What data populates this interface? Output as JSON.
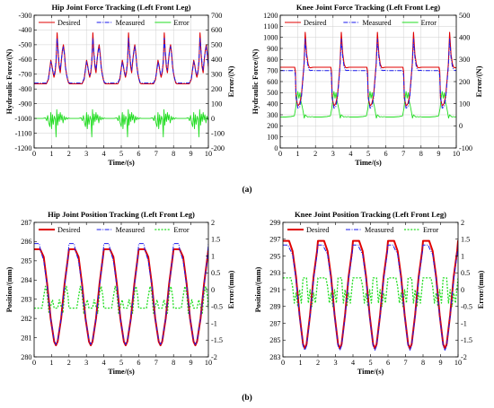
{
  "figure": {
    "subfigure_a_label": "(a)",
    "subfigure_b_label": "(b)"
  },
  "colors": {
    "desired": "#e00000",
    "measured": "#1a1aee",
    "error": "#22dd22"
  },
  "chart_data": [
    {
      "type": "line",
      "title": "Hip Joint Force Tracking (Left Front Leg)",
      "xlabel": "Time/(s)",
      "ylabel": "Hydraulic Force/(N)",
      "y2label": "Error/(N)",
      "xlim": [
        0,
        10
      ],
      "ylim": [
        -1200,
        -300
      ],
      "y2lim": [
        -200,
        700
      ],
      "xticks": [
        "0",
        "1",
        "2",
        "3",
        "4",
        "5",
        "6",
        "7",
        "8",
        "9",
        "10"
      ],
      "yticks": [
        "-300",
        "-400",
        "-500",
        "-600",
        "-700",
        "-800",
        "-900",
        "-1000",
        "-1100",
        "-1200"
      ],
      "y2ticks": [
        "700",
        "600",
        "500",
        "400",
        "300",
        "200",
        "100",
        "0",
        "-100",
        "-200"
      ],
      "grid": true,
      "legend": "top",
      "period": 2.05,
      "series": [
        {
          "name": "Desired",
          "axis": "left",
          "style": "solid",
          "width": 1.1,
          "x": [
            0,
            0.7,
            0.82,
            0.9,
            0.96,
            1.02,
            1.08,
            1.14,
            1.2,
            1.26,
            1.32,
            1.38,
            1.44,
            1.5,
            1.56,
            1.62,
            1.68,
            1.74,
            1.8,
            1.86,
            1.92,
            1.98,
            2.05
          ],
          "y": [
            -765,
            -765,
            -735,
            -660,
            -605,
            -640,
            -690,
            -720,
            -690,
            -620,
            -420,
            -560,
            -650,
            -690,
            -610,
            -540,
            -500,
            -560,
            -650,
            -700,
            -735,
            -760,
            -765
          ]
        },
        {
          "name": "Measured",
          "axis": "left",
          "style": "dashdot",
          "width": 1.0,
          "x": [
            0,
            0.7,
            0.82,
            0.9,
            0.96,
            1.02,
            1.08,
            1.14,
            1.2,
            1.26,
            1.32,
            1.38,
            1.44,
            1.5,
            1.56,
            1.62,
            1.68,
            1.74,
            1.8,
            1.86,
            1.92,
            1.98,
            2.05
          ],
          "y": [
            -760,
            -760,
            -728,
            -668,
            -615,
            -648,
            -682,
            -708,
            -675,
            -608,
            -455,
            -548,
            -632,
            -672,
            -602,
            -548,
            -512,
            -572,
            -655,
            -702,
            -732,
            -755,
            -760
          ]
        },
        {
          "name": "Error",
          "axis": "right",
          "style": "solid",
          "width": 0.9,
          "x": [
            0,
            0.5,
            0.65,
            0.72,
            0.78,
            0.84,
            0.9,
            0.96,
            1.0,
            1.05,
            1.1,
            1.16,
            1.22,
            1.26,
            1.3,
            1.35,
            1.4,
            1.45,
            1.5,
            1.55,
            1.6,
            1.66,
            1.72,
            1.78,
            1.84,
            1.9,
            1.96,
            2.05
          ],
          "y": [
            0,
            0,
            5,
            -15,
            20,
            -30,
            -55,
            40,
            -70,
            25,
            -40,
            15,
            -10,
            -125,
            60,
            -45,
            30,
            -20,
            40,
            -10,
            25,
            -30,
            15,
            -10,
            8,
            -5,
            3,
            0
          ]
        }
      ]
    },
    {
      "type": "line",
      "title": "Knee Joint Force Tracking (Left Front Leg)",
      "xlabel": "Time/(s)",
      "ylabel": "Hydraulic Force/(N)",
      "y2label": "Error/(N)",
      "xlim": [
        0,
        10
      ],
      "ylim": [
        0,
        1200
      ],
      "y2lim": [
        -100,
        500
      ],
      "xticks": [
        "0",
        "1",
        "2",
        "3",
        "4",
        "5",
        "6",
        "7",
        "8",
        "9",
        "10"
      ],
      "yticks": [
        "1200",
        "1100",
        "1000",
        "900",
        "800",
        "700",
        "600",
        "500",
        "400",
        "300",
        "200",
        "100",
        "0"
      ],
      "y2ticks": [
        "500",
        "400",
        "300",
        "200",
        "100",
        "0",
        "-100"
      ],
      "grid": true,
      "legend": "top",
      "period": 2.05,
      "series": [
        {
          "name": "Desired",
          "axis": "left",
          "style": "solid",
          "width": 1.1,
          "x": [
            0,
            0.82,
            0.86,
            0.9,
            1.0,
            1.1,
            1.2,
            1.28,
            1.35,
            1.42,
            1.5,
            1.58,
            1.65,
            1.72,
            1.8,
            1.9,
            2.0,
            2.05
          ],
          "y": [
            730,
            730,
            690,
            450,
            380,
            400,
            470,
            620,
            760,
            1045,
            850,
            760,
            730,
            725,
            728,
            730,
            730,
            730
          ]
        },
        {
          "name": "Measured",
          "axis": "left",
          "style": "dashdot",
          "width": 1.0,
          "x": [
            0,
            0.82,
            0.86,
            0.9,
            1.0,
            1.1,
            1.2,
            1.28,
            1.35,
            1.42,
            1.5,
            1.58,
            1.65,
            1.72,
            1.8,
            1.9,
            2.0,
            2.05
          ],
          "y": [
            700,
            700,
            650,
            460,
            360,
            370,
            450,
            600,
            740,
            985,
            820,
            735,
            705,
            700,
            702,
            700,
            700,
            700
          ]
        },
        {
          "name": "Error",
          "axis": "right",
          "style": "solid",
          "width": 0.9,
          "x": [
            0,
            0.3,
            0.6,
            0.8,
            0.88,
            0.95,
            1.0,
            1.06,
            1.12,
            1.18,
            1.24,
            1.3,
            1.36,
            1.42,
            1.48,
            1.56,
            1.64,
            1.72,
            1.8,
            1.9,
            2.05
          ],
          "y": [
            40,
            40,
            42,
            45,
            80,
            130,
            155,
            125,
            150,
            110,
            90,
            65,
            35,
            50,
            45,
            40,
            42,
            40,
            42,
            40,
            40
          ]
        }
      ]
    },
    {
      "type": "line",
      "title": "Hip Joint Position Tracking (Left Front Leg)",
      "xlabel": "Time/(s)",
      "ylabel": "Position/(mm)",
      "y2label": "Error/(mm)",
      "xlim": [
        0,
        10
      ],
      "ylim": [
        280,
        287
      ],
      "y2lim": [
        -2,
        2
      ],
      "xticks": [
        "0",
        "1",
        "2",
        "3",
        "4",
        "5",
        "6",
        "7",
        "8",
        "9",
        "10"
      ],
      "yticks": [
        "287",
        "286",
        "285",
        "284",
        "283",
        "282",
        "281",
        "280"
      ],
      "y2ticks": [
        "2",
        "1.5",
        "1",
        "0.5",
        "0",
        "-0.5",
        "-1",
        "-1.5",
        "-2"
      ],
      "grid": false,
      "legend": "top",
      "period": 2.0,
      "series": [
        {
          "name": "Desired",
          "axis": "left",
          "style": "solid",
          "width": 2.0,
          "x": [
            0,
            0.35,
            0.55,
            0.75,
            0.95,
            1.15,
            1.25,
            1.35,
            1.55,
            1.75,
            1.95,
            2.0
          ],
          "y": [
            285.6,
            285.6,
            285.2,
            283.8,
            282.0,
            280.8,
            280.6,
            280.8,
            282.0,
            283.8,
            285.2,
            285.6
          ]
        },
        {
          "name": "Measured",
          "axis": "left",
          "style": "dashdot",
          "width": 1.0,
          "x": [
            0,
            0.3,
            0.35,
            0.55,
            0.75,
            0.95,
            1.15,
            1.25,
            1.35,
            1.55,
            1.75,
            1.95,
            2.0
          ],
          "y": [
            285.9,
            285.9,
            285.6,
            285.0,
            283.7,
            282.0,
            280.85,
            280.65,
            280.85,
            282.0,
            283.7,
            285.2,
            285.9
          ]
        },
        {
          "name": "Error",
          "axis": "right",
          "style": "dotted",
          "width": 1.3,
          "x": [
            0,
            0.35,
            0.45,
            0.55,
            0.65,
            0.75,
            0.85,
            0.95,
            1.05,
            1.15,
            1.25,
            1.35,
            1.45,
            1.55,
            1.65,
            1.75,
            1.85,
            1.95,
            2.0
          ],
          "y": [
            -0.55,
            -0.55,
            -0.55,
            -0.2,
            0.1,
            -0.1,
            -0.7,
            -0.5,
            -0.3,
            -0.55,
            -0.55,
            -0.55,
            -0.3,
            -0.5,
            -0.7,
            -0.1,
            0.1,
            -0.2,
            -0.55
          ]
        }
      ]
    },
    {
      "type": "line",
      "title": "Knee Joint Position Tracking (Left Front Leg)",
      "xlabel": "Time/(s)",
      "ylabel": "Position/(mm)",
      "y2label": "Error/(mm)",
      "xlim": [
        0,
        10
      ],
      "ylim": [
        283,
        299
      ],
      "y2lim": [
        -2,
        2
      ],
      "xticks": [
        "0",
        "1",
        "2",
        "3",
        "4",
        "5",
        "6",
        "7",
        "8",
        "9",
        "10"
      ],
      "yticks": [
        "299",
        "297",
        "295",
        "293",
        "291",
        "289",
        "287",
        "285",
        "283"
      ],
      "y2ticks": [
        "2",
        "1.5",
        "1",
        "0.5",
        "0",
        "-0.5",
        "-1",
        "-1.5",
        "-2"
      ],
      "grid": false,
      "legend": "top",
      "period": 2.0,
      "series": [
        {
          "name": "Desired",
          "axis": "left",
          "style": "solid",
          "width": 2.0,
          "x": [
            0,
            0.35,
            0.55,
            0.75,
            0.95,
            1.15,
            1.25,
            1.35,
            1.55,
            1.75,
            1.95,
            2.0
          ],
          "y": [
            296.8,
            296.8,
            295.6,
            292.5,
            288.0,
            284.5,
            284.0,
            284.5,
            288.0,
            292.5,
            295.6,
            296.8
          ]
        },
        {
          "name": "Measured",
          "axis": "left",
          "style": "dashdot",
          "width": 1.0,
          "x": [
            0,
            0.3,
            0.35,
            0.55,
            0.75,
            0.95,
            1.15,
            1.25,
            1.35,
            1.55,
            1.75,
            1.95,
            2.0
          ],
          "y": [
            296.3,
            296.3,
            296.0,
            295.2,
            292.2,
            287.8,
            284.3,
            283.8,
            284.3,
            287.8,
            292.2,
            295.2,
            296.3
          ]
        },
        {
          "name": "Error",
          "axis": "right",
          "style": "dotted",
          "width": 1.3,
          "x": [
            0,
            0.35,
            0.45,
            0.55,
            0.65,
            0.75,
            0.85,
            0.95,
            1.05,
            1.15,
            1.25,
            1.35,
            1.45,
            1.55,
            1.65,
            1.75,
            1.85,
            1.95,
            2.0
          ],
          "y": [
            0.35,
            0.35,
            0.35,
            0.1,
            -0.4,
            -0.1,
            -0.5,
            0.0,
            -0.4,
            0.35,
            0.35,
            0.35,
            -0.4,
            0.0,
            -0.5,
            -0.1,
            -0.4,
            0.1,
            0.35
          ]
        }
      ]
    }
  ]
}
